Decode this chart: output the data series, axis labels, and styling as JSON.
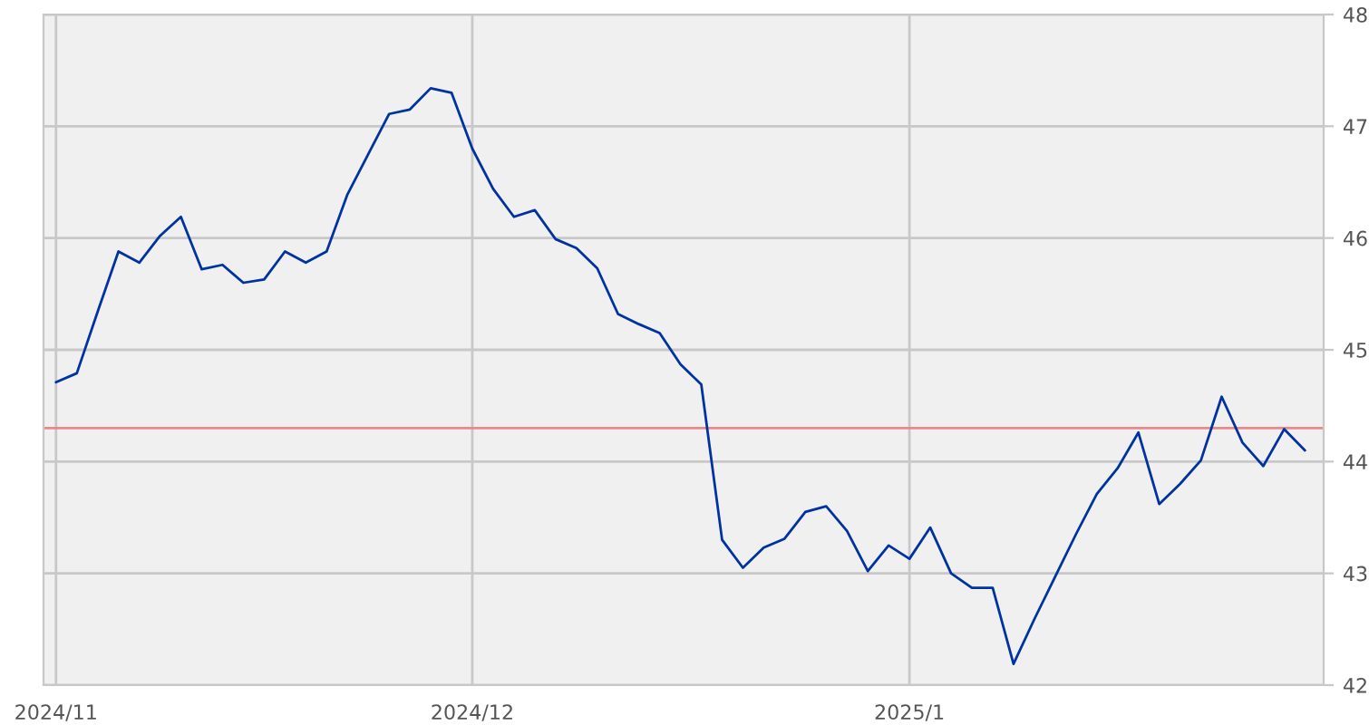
{
  "chart_data": {
    "type": "line",
    "categories": [
      "2024/11",
      null,
      null,
      null,
      null,
      null,
      null,
      null,
      null,
      null,
      null,
      null,
      null,
      null,
      null,
      null,
      null,
      null,
      null,
      null,
      "2024/12",
      null,
      null,
      null,
      null,
      null,
      null,
      null,
      null,
      null,
      null,
      null,
      null,
      null,
      null,
      null,
      null,
      null,
      null,
      null,
      null,
      "2025/1",
      null,
      null,
      null,
      null,
      null,
      null,
      null,
      null,
      null,
      null,
      null,
      null,
      null,
      null,
      null,
      null,
      null,
      null,
      null
    ],
    "series": [
      {
        "color": "#0033a0",
        "values": [
          44.71,
          44.79,
          45.34,
          45.88,
          45.78,
          46.02,
          46.19,
          45.72,
          45.76,
          45.6,
          45.63,
          45.88,
          45.78,
          45.88,
          46.39,
          46.75,
          47.11,
          47.15,
          47.34,
          47.3,
          46.8,
          46.44,
          46.19,
          46.25,
          45.99,
          45.91,
          45.73,
          45.32,
          45.23,
          45.15,
          44.87,
          44.69,
          43.3,
          43.05,
          43.23,
          43.31,
          43.55,
          43.6,
          43.38,
          43.02,
          43.25,
          43.13,
          43.41,
          43.0,
          42.87,
          42.87,
          42.19,
          42.59,
          42.97,
          43.35,
          43.71,
          43.94,
          44.26,
          43.62,
          43.8,
          44.01,
          44.58,
          44.17,
          43.96,
          44.29,
          44.1
        ]
      }
    ],
    "ylim": [
      42,
      48
    ],
    "yticks": [
      42,
      43,
      44,
      45,
      46,
      47,
      48
    ],
    "ref_lines": [
      {
        "axis": "y",
        "value": 44.3,
        "color": "#e88a8a"
      }
    ],
    "grid": true,
    "marker": "none",
    "line_style": "solid"
  }
}
